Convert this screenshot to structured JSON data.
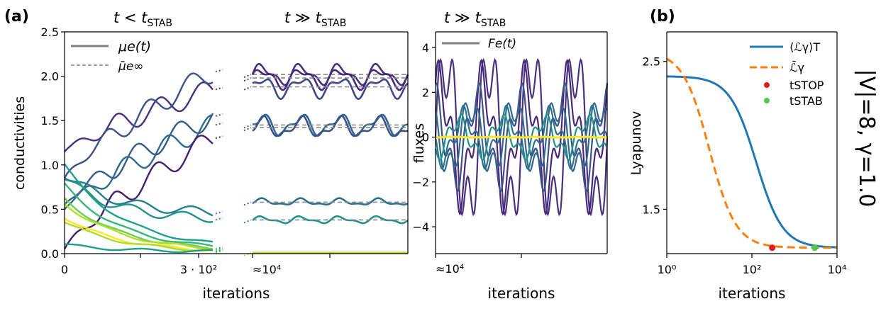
{
  "figure": {
    "panel_a_letter": "(a)",
    "panel_b_letter": "(b)",
    "side_title": "|V|=8, γ=1.0"
  },
  "chart_data": [
    {
      "id": "conductivities",
      "type": "line",
      "ylabel": "conductivities",
      "xlabel": "iterations",
      "ylim": [
        0,
        2.5
      ],
      "yticks": [
        "0.0",
        "0.5",
        "1.0",
        "1.5",
        "2.0",
        "2.5"
      ],
      "segments": [
        {
          "title": "t < t_STAB",
          "title_sub": "STAB",
          "title_main": "t < t",
          "xticks": [
            "0",
            "3 · 10²"
          ]
        },
        {
          "title": "t ≫ t_STAB",
          "title_sub": "STAB",
          "title_main": "t ≫ t",
          "xticks": [
            "≈10⁴"
          ]
        }
      ],
      "legend": [
        {
          "label": "μe(t)",
          "style": "solid",
          "color": "#7f7f7f"
        },
        {
          "label": "μ̄e∞",
          "style": "dashed",
          "color": "#7f7f7f"
        }
      ],
      "series_early": [
        {
          "color": "#46327e",
          "start": 1.15,
          "end": 1.85,
          "kind": "rise"
        },
        {
          "color": "#3b528b",
          "start": 0.85,
          "end": 2.05,
          "kind": "rise"
        },
        {
          "color": "#365c8d",
          "start": 0.55,
          "end": 1.55,
          "kind": "rise"
        },
        {
          "color": "#31688e",
          "start": 0.5,
          "end": 1.45,
          "kind": "rise"
        },
        {
          "color": "#481f70",
          "start": 0.05,
          "end": 1.3,
          "kind": "rise"
        },
        {
          "color": "#277f8e",
          "start": 0.9,
          "end": 0.45,
          "kind": "flat"
        },
        {
          "color": "#21918c",
          "start": 0.85,
          "end": 0.38,
          "kind": "flat"
        },
        {
          "color": "#1fa088",
          "start": 0.95,
          "end": 0.05,
          "kind": "decay"
        },
        {
          "color": "#35b779",
          "start": 0.75,
          "end": 0.03,
          "kind": "decay"
        },
        {
          "color": "#6ece58",
          "start": 0.6,
          "end": 0.02,
          "kind": "decay"
        },
        {
          "color": "#b5de2b",
          "start": 0.55,
          "end": 0.02,
          "kind": "decay"
        },
        {
          "color": "#fde725",
          "start": 0.4,
          "end": 0.01,
          "kind": "decay"
        },
        {
          "color": "#addc30",
          "start": 0.35,
          "end": 0.01,
          "kind": "decay"
        },
        {
          "color": "#1fa187",
          "start": 0.08,
          "end": 0.02,
          "kind": "decay"
        }
      ],
      "series_late": [
        {
          "color": "#46327e",
          "mean": 2.02
        },
        {
          "color": "#482878",
          "mean": 1.98
        },
        {
          "color": "#3e4989",
          "mean": 1.88
        },
        {
          "color": "#31688e",
          "mean": 1.45
        },
        {
          "color": "#3b528b",
          "mean": 1.42
        },
        {
          "color": "#2c728e",
          "mean": 0.58
        },
        {
          "color": "#21918c",
          "mean": 0.38
        },
        {
          "color": "#b5de2b",
          "mean": 0.01
        }
      ]
    },
    {
      "id": "fluxes",
      "type": "line",
      "title_main": "t ≫ t",
      "title_sub": "STAB",
      "ylabel": "fluxes",
      "xlabel": "iterations",
      "ylim": [
        -5.2,
        4.7
      ],
      "yticks": [
        "−4",
        "−2",
        "0",
        "2",
        "4"
      ],
      "yticks_values": [
        -4,
        -2,
        0,
        2,
        4
      ],
      "xticks": [
        "≈10⁴"
      ],
      "legend": [
        {
          "label": "Fe(t)",
          "style": "solid",
          "color": "#7f7f7f"
        }
      ],
      "series": [
        {
          "color": "#46327e",
          "amplitude": 4.4
        },
        {
          "color": "#482878",
          "amplitude": 3.2
        },
        {
          "color": "#3b528b",
          "amplitude": 2.3
        },
        {
          "color": "#31688e",
          "amplitude": 1.8
        },
        {
          "color": "#2c728e",
          "amplitude": 1.3
        },
        {
          "color": "#21918c",
          "amplitude": 1.0
        },
        {
          "color": "#fde725",
          "amplitude": 0.02
        }
      ]
    },
    {
      "id": "lyapunov",
      "type": "line",
      "ylabel": "Lyapunov",
      "xlabel": "iterations",
      "xscale": "log",
      "xlim": [
        1,
        10000
      ],
      "xticks": [
        "10⁰",
        "10²",
        "10⁴"
      ],
      "yticks": [
        "1.5",
        "2.5"
      ],
      "legend": [
        {
          "label": "⟨ℒγ⟩T",
          "style": "solid",
          "color": "#1f77b4"
        },
        {
          "label": "ℒ̄γ",
          "style": "dashed",
          "color": "#ff7f0e"
        },
        {
          "label": "tSTOP",
          "style": "dot",
          "color": "#e41a1c"
        },
        {
          "label": "tSTAB",
          "style": "dot",
          "color": "#4dc94d"
        }
      ],
      "series": [
        {
          "name": "⟨ℒγ⟩T",
          "color": "#1f77b4",
          "start": 2.4,
          "end": 1.24,
          "mid_log": 2.1
        },
        {
          "name": "ℒ̄γ",
          "color": "#ff7f0e",
          "start": 2.57,
          "end": 1.24,
          "mid_log": 1.0
        }
      ],
      "markers": [
        {
          "name": "tSTOP",
          "x": 300,
          "y": 1.24,
          "color": "#e41a1c"
        },
        {
          "name": "tSTAB",
          "x": 3000,
          "y": 1.24,
          "color": "#4dc94d"
        }
      ]
    }
  ]
}
